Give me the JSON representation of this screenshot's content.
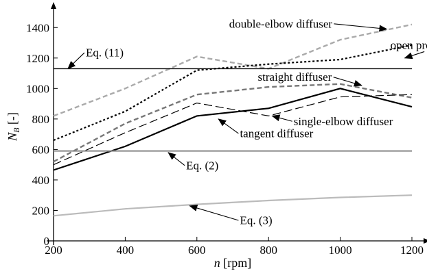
{
  "chart_data": {
    "type": "line",
    "title": "",
    "xlabel": "n [rpm]",
    "ylabel": "N_B [-]",
    "xlim": [
      200,
      1200
    ],
    "ylim": [
      0,
      1500
    ],
    "x_ticks": [
      "200",
      "400",
      "600",
      "800",
      "1000",
      "1200"
    ],
    "y_ticks": [
      "0",
      "200",
      "400",
      "600",
      "800",
      "1000",
      "1200",
      "1400"
    ],
    "grid": false,
    "legend": "none",
    "series": [
      {
        "name": "double-elbow diffuser",
        "color": "#aaaaaa",
        "dash": "dashed",
        "x": [
          200,
          400,
          600,
          800,
          1000,
          1200
        ],
        "y": [
          820,
          1000,
          1210,
          1130,
          1320,
          1420
        ]
      },
      {
        "name": "open propeller",
        "color": "#000000",
        "dash": "dotted",
        "x": [
          200,
          400,
          600,
          800,
          1000,
          1200
        ],
        "y": [
          660,
          850,
          1120,
          1160,
          1190,
          1285
        ]
      },
      {
        "name": "straight diffuser",
        "color": "#777777",
        "dash": "dashed",
        "x": [
          200,
          400,
          600,
          800,
          1000,
          1200
        ],
        "y": [
          520,
          770,
          960,
          1010,
          1030,
          940
        ]
      },
      {
        "name": "single-elbow diffuser",
        "color": "#000000",
        "dash": "longdash",
        "x": [
          200,
          400,
          600,
          800,
          1000,
          1200
        ],
        "y": [
          500,
          710,
          905,
          820,
          945,
          960
        ]
      },
      {
        "name": "tangent diffuser",
        "color": "#000000",
        "dash": "solid",
        "x": [
          200,
          400,
          600,
          800,
          1000,
          1200
        ],
        "y": [
          465,
          620,
          820,
          870,
          1000,
          880
        ]
      },
      {
        "name": "Eq. (11)",
        "color": "#000000",
        "dash": "solid",
        "x": [
          200,
          1200
        ],
        "y": [
          1130,
          1130
        ]
      },
      {
        "name": "Eq. (2)",
        "color": "#888888",
        "dash": "solid",
        "x": [
          200,
          1200
        ],
        "y": [
          590,
          590
        ]
      },
      {
        "name": "Eq. (3)",
        "color": "#bbbbbb",
        "dash": "solid",
        "x": [
          200,
          400,
          600,
          800,
          1000,
          1200
        ],
        "y": [
          165,
          210,
          240,
          265,
          285,
          300
        ]
      }
    ],
    "annotations": [
      {
        "text": "double-elbow diffuser",
        "tx": 690,
        "ty": 1400,
        "ax": 1130,
        "ay": 1390
      },
      {
        "text": "open propeller",
        "tx": 1140,
        "ty": 1260,
        "ax": 1180,
        "ay": 1200
      },
      {
        "text": "Eq. (11)",
        "tx": 290,
        "ty": 1210,
        "ax": 240,
        "ay": 1130
      },
      {
        "text": "straight diffuser",
        "tx": 770,
        "ty": 1050,
        "ax": 1060,
        "ay": 1020
      },
      {
        "text": "single-elbow diffuser",
        "tx": 870,
        "ty": 760,
        "ax": 810,
        "ay": 820
      },
      {
        "text": "tangent diffuser",
        "tx": 720,
        "ty": 680,
        "ax": 660,
        "ay": 800
      },
      {
        "text": "Eq. (2)",
        "tx": 570,
        "ty": 470,
        "ax": 520,
        "ay": 580
      },
      {
        "text": "Eq. (3)",
        "tx": 720,
        "ty": 110,
        "ax": 580,
        "ay": 230
      }
    ]
  }
}
